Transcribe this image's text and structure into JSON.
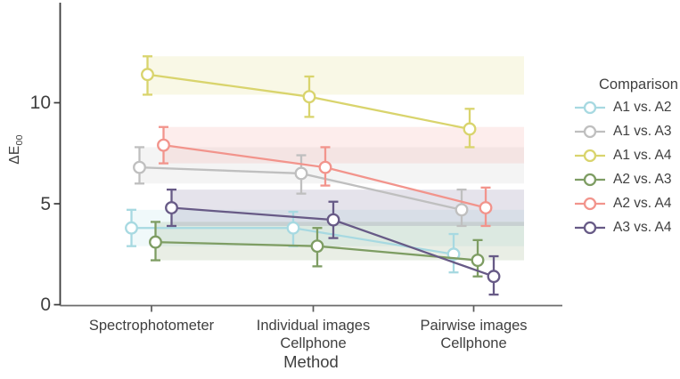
{
  "figure": {
    "y_axis": {
      "label_main": "ΔE",
      "label_sub": "00"
    },
    "x_axis": {
      "label": "Method",
      "category_lines": [
        [
          "Spectrophotometer"
        ],
        [
          "Individual images",
          "Cellphone"
        ],
        [
          "Pairwise images",
          "Cellphone"
        ]
      ]
    },
    "legend": {
      "title": "Comparison"
    }
  },
  "chart_data": {
    "type": "line",
    "title": "",
    "xlabel": "Method",
    "ylabel": "ΔE00",
    "categories": [
      "Spectrophotometer",
      "Individual images Cellphone",
      "Pairwise images Cellphone"
    ],
    "ylim": [
      0,
      14
    ],
    "yticks": [
      0,
      5,
      10
    ],
    "grid": false,
    "legend_title": "Comparison",
    "legend_position": "right",
    "error_bars": "95% CI",
    "bands_note": "Shaded horizontal band per series spans that series' spectrophotometer CI across the plot",
    "series": [
      {
        "name": "A1 vs. A2",
        "color": "#a7d9e1",
        "values": [
          3.8,
          3.8,
          2.5
        ],
        "ci": [
          [
            2.9,
            4.7
          ],
          [
            2.9,
            4.6
          ],
          [
            1.6,
            3.5
          ]
        ]
      },
      {
        "name": "A1 vs. A3",
        "color": "#bfbfbf",
        "values": [
          6.8,
          6.5,
          4.7
        ],
        "ci": [
          [
            6.0,
            7.8
          ],
          [
            5.5,
            7.4
          ],
          [
            3.9,
            5.7
          ]
        ]
      },
      {
        "name": "A1 vs. A4",
        "color": "#d9d46d",
        "values": [
          11.4,
          10.3,
          8.7
        ],
        "ci": [
          [
            10.4,
            12.3
          ],
          [
            9.3,
            11.3
          ],
          [
            7.8,
            9.7
          ]
        ]
      },
      {
        "name": "A2 vs. A3",
        "color": "#7e9d63",
        "values": [
          3.1,
          2.9,
          2.2
        ],
        "ci": [
          [
            2.2,
            4.1
          ],
          [
            1.9,
            3.8
          ],
          [
            1.4,
            3.2
          ]
        ]
      },
      {
        "name": "A2 vs. A4",
        "color": "#f2948c",
        "values": [
          7.9,
          6.8,
          4.8
        ],
        "ci": [
          [
            7.0,
            8.8
          ],
          [
            5.9,
            7.8
          ],
          [
            3.9,
            5.8
          ]
        ]
      },
      {
        "name": "A3 vs. A4",
        "color": "#675a86",
        "values": [
          4.8,
          4.2,
          1.4
        ],
        "ci": [
          [
            3.9,
            5.7
          ],
          [
            3.3,
            5.1
          ],
          [
            0.5,
            2.4
          ]
        ]
      }
    ]
  }
}
